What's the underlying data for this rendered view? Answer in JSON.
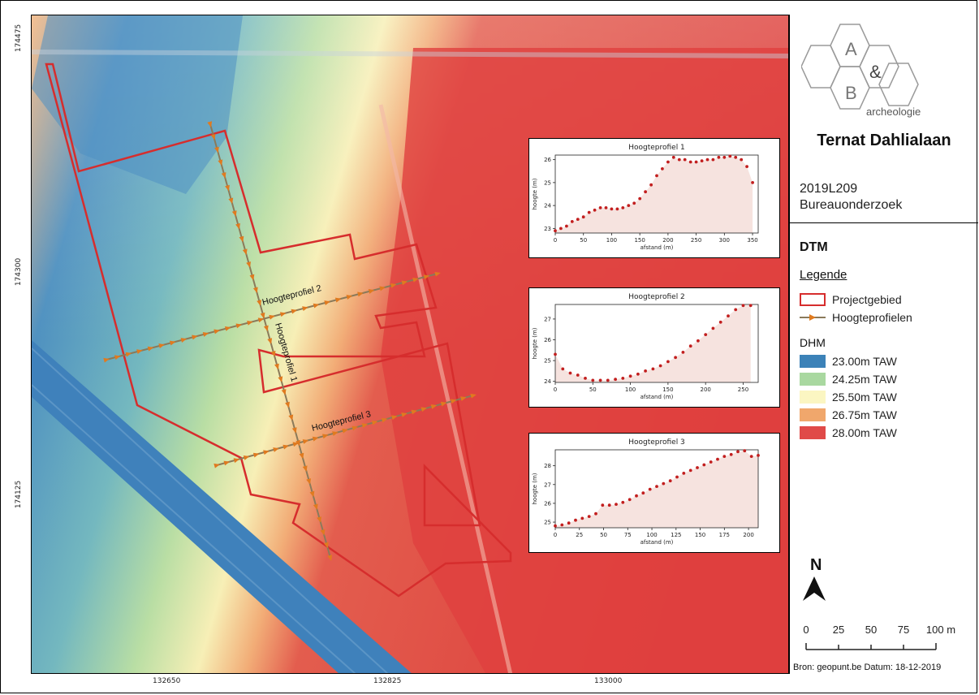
{
  "map": {
    "coords_x": [
      "132650",
      "132825",
      "133000"
    ],
    "coords_y": [
      "174475",
      "174300",
      "174125"
    ],
    "profile_labels": [
      "Hoogteprofiel 2",
      "Hoogteprofiel 1",
      "Hoogteprofiel 3"
    ],
    "colors": {
      "project_boundary": "#d62d2d",
      "profile_line": "#8a7a5a",
      "profile_marker": "#e07a1f"
    }
  },
  "sidebar": {
    "logo": {
      "letters": [
        "A",
        "&",
        "B"
      ],
      "text": "archeologie"
    },
    "title": "Ternat Dahlialaan",
    "code": "2019L209",
    "subtitle": "Bureauonderzoek",
    "legend_title": "DTM",
    "legend_heading": "Legende",
    "legend_items": [
      {
        "label": "Projectgebied",
        "icon": "red-outline-box"
      },
      {
        "label": "Hoogteprofielen",
        "icon": "arrow-line"
      }
    ],
    "dhm_heading": "DHM",
    "dhm_items": [
      {
        "label": "23.00m TAW",
        "color": "#3c82b8"
      },
      {
        "label": "24.25m TAW",
        "color": "#a9d8a0"
      },
      {
        "label": "25.50m TAW",
        "color": "#fbf6c2"
      },
      {
        "label": "26.75m TAW",
        "color": "#f0a76c"
      },
      {
        "label": "28.00m TAW",
        "color": "#e04a48"
      }
    ],
    "north_label": "N",
    "scale_ticks": [
      "0",
      "25",
      "50",
      "75",
      "100 m"
    ],
    "source": "Bron: geopunt.be Datum: 18-12-2019"
  },
  "chart_data": [
    {
      "type": "scatter",
      "title": "Hoogteprofiel 1",
      "xlabel": "afstand (m)",
      "ylabel": "hoogte (m)",
      "xlim": [
        0,
        360
      ],
      "ylim": [
        22.8,
        26.2
      ],
      "xticks": [
        0,
        50,
        100,
        150,
        200,
        250,
        300,
        350
      ],
      "yticks": [
        23,
        24,
        25,
        26
      ],
      "x": [
        0,
        10,
        20,
        30,
        40,
        50,
        60,
        70,
        80,
        90,
        100,
        110,
        120,
        130,
        140,
        150,
        160,
        170,
        180,
        190,
        200,
        210,
        220,
        230,
        240,
        250,
        260,
        270,
        280,
        290,
        300,
        310,
        320,
        330,
        340,
        350
      ],
      "y": [
        22.9,
        23.0,
        23.1,
        23.3,
        23.4,
        23.5,
        23.7,
        23.8,
        23.9,
        23.9,
        23.85,
        23.85,
        23.9,
        24.0,
        24.1,
        24.3,
        24.6,
        24.9,
        25.3,
        25.6,
        25.9,
        26.1,
        26.0,
        26.0,
        25.9,
        25.9,
        25.95,
        26.0,
        26.0,
        26.1,
        26.1,
        26.15,
        26.1,
        26.0,
        25.7,
        25.0
      ],
      "fill_color": "#f6e3df",
      "marker_color": "#c21f1f"
    },
    {
      "type": "scatter",
      "title": "Hoogteprofiel 2",
      "xlabel": "afstand (m)",
      "ylabel": "hoogte (m)",
      "xlim": [
        0,
        270
      ],
      "ylim": [
        23.95,
        27.7
      ],
      "xticks": [
        0,
        50,
        100,
        150,
        200,
        250
      ],
      "yticks": [
        24,
        25,
        26,
        27
      ],
      "x": [
        0,
        10,
        20,
        30,
        40,
        50,
        60,
        70,
        80,
        90,
        100,
        110,
        120,
        130,
        140,
        150,
        160,
        170,
        180,
        190,
        200,
        210,
        220,
        230,
        240,
        250,
        260
      ],
      "y": [
        25.3,
        24.6,
        24.4,
        24.3,
        24.15,
        24.05,
        24.05,
        24.05,
        24.1,
        24.15,
        24.25,
        24.35,
        24.5,
        24.6,
        24.75,
        24.95,
        25.15,
        25.4,
        25.7,
        25.95,
        26.25,
        26.55,
        26.85,
        27.15,
        27.45,
        27.65,
        27.65
      ],
      "fill_color": "#f6e3df",
      "marker_color": "#c21f1f"
    },
    {
      "type": "scatter",
      "title": "Hoogteprofiel 3",
      "xlabel": "afstand (m)",
      "ylabel": "hoogte (m)",
      "xlim": [
        0,
        210
      ],
      "ylim": [
        24.7,
        28.85
      ],
      "xticks": [
        0,
        25,
        50,
        75,
        100,
        125,
        150,
        175,
        200
      ],
      "yticks": [
        25,
        26,
        27,
        28
      ],
      "x": [
        0,
        7,
        14,
        21,
        28,
        35,
        42,
        49,
        56,
        63,
        70,
        77,
        84,
        91,
        98,
        105,
        112,
        119,
        126,
        133,
        140,
        147,
        154,
        161,
        168,
        175,
        182,
        189,
        196,
        203,
        210
      ],
      "y": [
        24.8,
        24.85,
        24.95,
        25.1,
        25.2,
        25.3,
        25.45,
        25.9,
        25.9,
        25.95,
        26.05,
        26.2,
        26.4,
        26.55,
        26.75,
        26.9,
        27.05,
        27.2,
        27.4,
        27.6,
        27.75,
        27.9,
        28.05,
        28.2,
        28.35,
        28.5,
        28.6,
        28.75,
        28.8,
        28.5,
        28.55
      ],
      "fill_color": "#f6e3df",
      "marker_color": "#c21f1f"
    }
  ]
}
